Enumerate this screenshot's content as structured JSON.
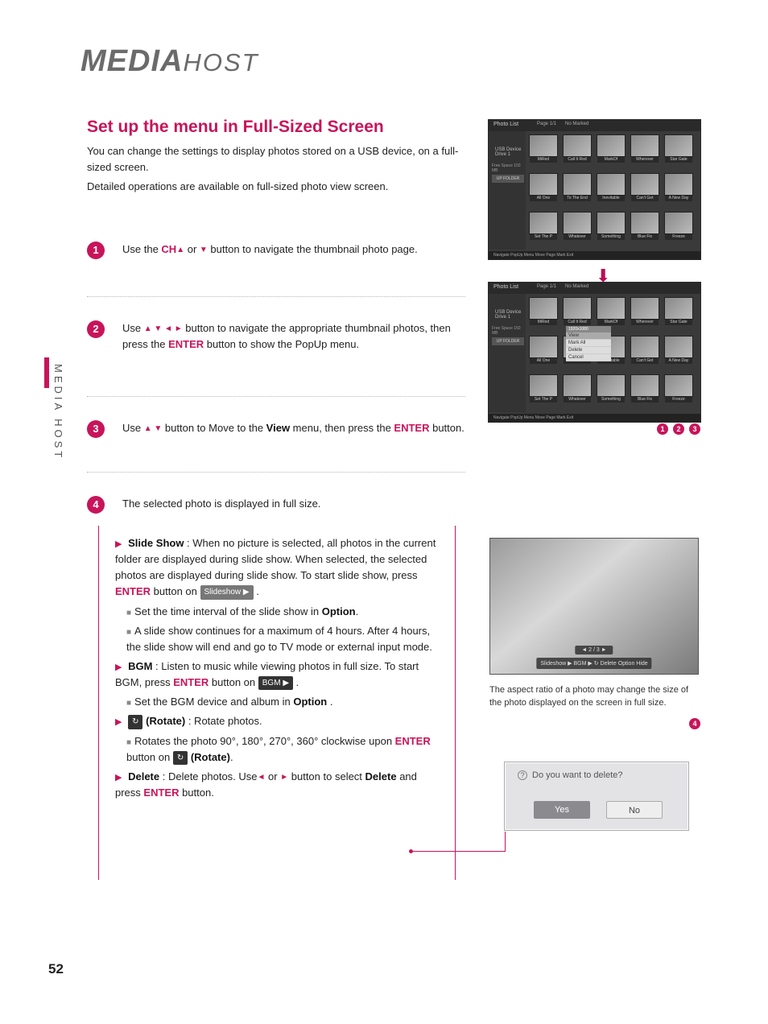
{
  "logo": {
    "main": "MEDIA",
    "suffix": "HOST"
  },
  "sideTab": "MEDIA HOST",
  "title": "Set up the menu in Full-Sized Screen",
  "intro1": "You can change the settings to display photos stored on a  USB device, on a full-sized screen.",
  "intro2": "Detailed operations are available on full-sized photo view screen.",
  "steps": {
    "s1a": "Use the ",
    "s1b": "CH",
    "s1c": " or ",
    "s1d": " button to navigate the thumbnail photo page.",
    "s2a": "Use ",
    "s2b": " button to navigate the appropriate thumbnail photos, then press the ",
    "s2c": "ENTER",
    "s2d": " button to show the PopUp  menu.",
    "s3a": "Use ",
    "s3b": "  button to Move to the ",
    "s3c": "View",
    "s3d": " menu, then press the ",
    "s3e": "ENTER",
    "s3f": " button.",
    "s4": "The selected photo is displayed in full size."
  },
  "options": {
    "ss_label": "Slide Show",
    "ss_text": " : When no picture is selected, all photos in the current folder are displayed during slide show. When selected, the selected photos are displayed during slide show. To start slide show, press ",
    "ss_enter": "ENTER",
    "ss_text2": " button on  ",
    "ss_chip": "Slideshow ▶",
    "ss_sub1a": "Set the time interval of the slide show in ",
    "ss_sub1b": "Option",
    "ss_sub1c": ".",
    "ss_sub2": "A slide show continues for a maximum of 4 hours. After 4 hours, the slide show will end and go to TV mode or external input mode.",
    "bgm_label": "BGM",
    "bgm_text": " : Listen to music while viewing photos in full size. To start BGM, press ",
    "bgm_enter": "ENTER",
    "bgm_text2": " button on  ",
    "bgm_chip": "BGM ▶",
    "bgm_sub1a": "Set the BGM device and album in ",
    "bgm_sub1b": "Option",
    "bgm_sub1c": " .",
    "rot_label": "(Rotate)",
    "rot_text": " : Rotate photos.",
    "rot_sub1a": "Rotates the photo 90°, 180°, 270°, 360° clockwise upon ",
    "rot_sub1b": "ENTER",
    "rot_sub1c": " button on ",
    "rot_sub1d": " (Rotate)",
    "rot_sub1e": ".",
    "del_label": "Delete",
    "del_text": " : Delete photos. Use",
    "del_text2": " or ",
    "del_text3": " button to select ",
    "del_label2": "Delete",
    "del_text4": " and press ",
    "del_enter": "ENTER",
    "del_text5": " button."
  },
  "thumbs": {
    "header": "Photo List",
    "page": "Page 1/1",
    "marked": "No Marked",
    "upfolder": "UP FOLDER",
    "driveLabel": "USB Device",
    "drive": "Drive 1",
    "free": "Free Space 150 MB",
    "footer_nav": "Navigate    PopUp Menu       Move Page      Mark     Exit",
    "popup_title": "1920x1080",
    "popup": [
      "View",
      "Mark All",
      "Delete",
      "Cancel"
    ],
    "names": [
      "MiRed",
      "Call It Red",
      "MarkOf",
      "Wherever",
      "Star Gate",
      "All One",
      "To The End",
      "Inevitable",
      "Can't Get",
      "A New Day",
      "Set The P",
      "Whatever",
      "Something",
      "Blue Fix",
      "Freeze"
    ]
  },
  "photoBar": {
    "count": "◄   2 / 3   ►",
    "items": "Slideshow ▶   BGM ▶   ↻   Delete    Option    Hide"
  },
  "aspectNote": "The aspect ratio of a photo may change the size of the photo displayed on the screen in full size.",
  "dialog": {
    "q": "Do you want to delete?",
    "yes": "Yes",
    "no": "No"
  },
  "pageNum": "52"
}
